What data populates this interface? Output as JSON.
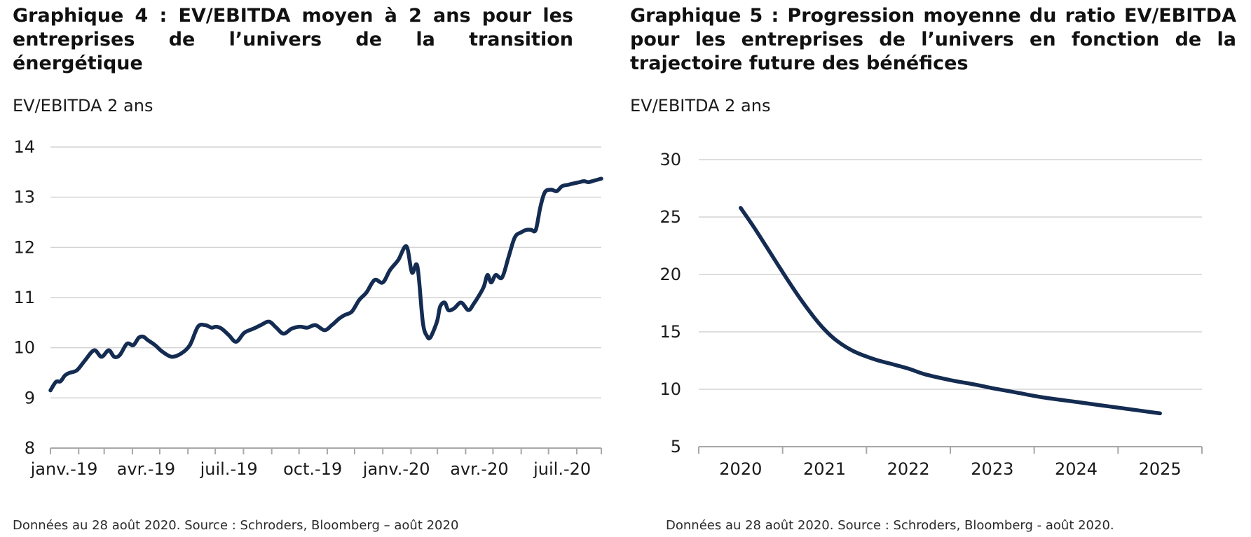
{
  "colors": {
    "series": "#142c52",
    "grid": "#d4d4d4",
    "axis": "#a8a8a8"
  },
  "chart_data": [
    {
      "type": "line",
      "title": "Graphique 4 : EV/EBITDA moyen à 2 ans pour les entreprises de l’univers de la transition énergétique",
      "unit_label": "EV/EBITDA 2 ans",
      "source": "Données au 28 août 2020. Source : Schroders, Bloomberg – août 2020",
      "xlabel": "",
      "ylabel": "",
      "ylim": [
        8,
        14
      ],
      "yticks": [
        8,
        9,
        10,
        11,
        12,
        13,
        14
      ],
      "grid": true,
      "legend": "none",
      "x_tick_labels": [
        "janv.-19",
        "avr.-19",
        "juil.-19",
        "oct.-19",
        "janv.-20",
        "avr.-20",
        "juil.-20"
      ],
      "x_domain": [
        "2019-01-01",
        "2020-08-28"
      ],
      "series": [
        {
          "x": [
            "2019-01-01",
            "2019-01-07",
            "2019-01-12",
            "2019-01-17",
            "2019-01-22",
            "2019-01-30",
            "2019-02-08",
            "2019-02-18",
            "2019-02-26",
            "2019-03-06",
            "2019-03-12",
            "2019-03-18",
            "2019-03-26",
            "2019-04-02",
            "2019-04-08",
            "2019-04-13",
            "2019-04-18",
            "2019-04-26",
            "2019-05-04",
            "2019-05-14",
            "2019-05-24",
            "2019-06-03",
            "2019-06-12",
            "2019-06-20",
            "2019-06-27",
            "2019-07-02",
            "2019-07-08",
            "2019-07-16",
            "2019-07-24",
            "2019-08-02",
            "2019-08-12",
            "2019-08-20",
            "2019-08-29",
            "2019-09-06",
            "2019-09-14",
            "2019-09-23",
            "2019-10-02",
            "2019-10-10",
            "2019-10-19",
            "2019-10-29",
            "2019-11-06",
            "2019-11-14",
            "2019-11-20",
            "2019-11-28",
            "2019-12-06",
            "2019-12-14",
            "2019-12-23",
            "2020-01-01",
            "2020-01-09",
            "2020-01-18",
            "2020-01-27",
            "2020-02-02",
            "2020-02-08",
            "2020-02-14",
            "2020-02-19",
            "2020-02-22",
            "2020-02-26",
            "2020-03-01",
            "2020-03-04",
            "2020-03-09",
            "2020-03-13",
            "2020-03-19",
            "2020-03-27",
            "2020-04-04",
            "2020-04-10",
            "2020-04-16",
            "2020-04-21",
            "2020-04-25",
            "2020-04-29",
            "2020-05-04",
            "2020-05-11",
            "2020-05-18",
            "2020-05-25",
            "2020-06-01",
            "2020-06-07",
            "2020-06-12",
            "2020-06-17",
            "2020-06-22",
            "2020-06-27",
            "2020-07-04",
            "2020-07-10",
            "2020-07-16",
            "2020-07-23",
            "2020-07-30",
            "2020-08-04",
            "2020-08-09",
            "2020-08-14",
            "2020-08-20",
            "2020-08-24",
            "2020-08-28"
          ],
          "values": [
            9.15,
            9.32,
            9.33,
            9.45,
            9.5,
            9.55,
            9.75,
            9.95,
            9.82,
            9.95,
            9.82,
            9.85,
            10.08,
            10.05,
            10.2,
            10.22,
            10.15,
            10.05,
            9.92,
            9.82,
            9.88,
            10.05,
            10.42,
            10.45,
            10.4,
            10.42,
            10.38,
            10.25,
            10.12,
            10.3,
            10.38,
            10.45,
            10.52,
            10.4,
            10.28,
            10.38,
            10.42,
            10.4,
            10.45,
            10.35,
            10.45,
            10.58,
            10.65,
            10.72,
            10.95,
            11.1,
            11.35,
            11.3,
            11.55,
            11.75,
            12.02,
            11.5,
            11.62,
            10.5,
            10.22,
            10.2,
            10.35,
            10.55,
            10.82,
            10.9,
            10.75,
            10.78,
            10.9,
            10.75,
            10.88,
            11.05,
            11.22,
            11.45,
            11.3,
            11.45,
            11.4,
            11.8,
            12.2,
            12.3,
            12.35,
            12.35,
            12.35,
            12.8,
            13.1,
            13.15,
            13.12,
            13.22,
            13.25,
            13.28,
            13.3,
            13.32,
            13.3,
            13.33,
            13.35,
            13.37
          ]
        }
      ]
    },
    {
      "type": "line",
      "title": "Graphique 5 : Progression moyenne du ratio EV/EBITDA pour les entreprises de l’univers en fonction de la trajectoire future des bénéfices",
      "unit_label": "EV/EBITDA 2 ans",
      "source": "Données au 28 août 2020. Source : Schroders, Bloomberg - août 2020.",
      "xlabel": "",
      "ylabel": "",
      "ylim": [
        5,
        30
      ],
      "yticks": [
        5,
        10,
        15,
        20,
        25,
        30
      ],
      "grid": true,
      "legend": "none",
      "categories": [
        "2020",
        "2021",
        "2022",
        "2023",
        "2024",
        "2025"
      ],
      "series": [
        {
          "x": [
            0,
            0.15,
            0.3,
            0.5,
            0.7,
            0.85,
            1.0,
            1.15,
            1.35,
            1.6,
            1.8,
            2.0,
            2.2,
            2.5,
            2.8,
            3.0,
            3.3,
            3.6,
            4.0,
            4.3,
            4.6,
            5.0
          ],
          "values": [
            25.8,
            24.2,
            22.5,
            20.2,
            18.0,
            16.5,
            15.2,
            14.2,
            13.3,
            12.6,
            12.2,
            11.8,
            11.3,
            10.8,
            10.4,
            10.1,
            9.7,
            9.3,
            8.9,
            8.6,
            8.3,
            7.9
          ]
        }
      ]
    }
  ]
}
